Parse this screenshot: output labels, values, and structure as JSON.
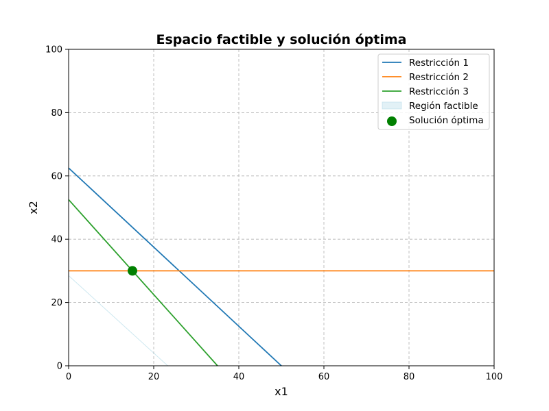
{
  "chart_data": {
    "type": "line",
    "title": "Espacio factible y solución óptima",
    "xlabel": "x1",
    "ylabel": "x2",
    "xlim": [
      0,
      100
    ],
    "ylim": [
      0,
      100
    ],
    "xticks": [
      0,
      20,
      40,
      60,
      80,
      100
    ],
    "yticks": [
      0,
      20,
      40,
      60,
      80,
      100
    ],
    "grid": true,
    "legend_position": "top-right",
    "series": [
      {
        "name": "Restricción 1",
        "color": "#1f77b4",
        "x": [
          0,
          50
        ],
        "y": [
          62.5,
          0
        ]
      },
      {
        "name": "Restricción 2",
        "color": "#ff7f0e",
        "x": [
          0,
          100
        ],
        "y": [
          30,
          30
        ]
      },
      {
        "name": "Restricción 3",
        "color": "#2ca02c",
        "x": [
          0,
          35
        ],
        "y": [
          52.5,
          0
        ]
      }
    ],
    "feasible_region": {
      "name": "Región factible",
      "color": "#add8e6",
      "x": [
        0,
        23.3
      ],
      "y": [
        28.5,
        0
      ]
    },
    "optimal_solution": {
      "name": "Solución óptima",
      "color": "#008000",
      "x": 15,
      "y": 30
    }
  }
}
